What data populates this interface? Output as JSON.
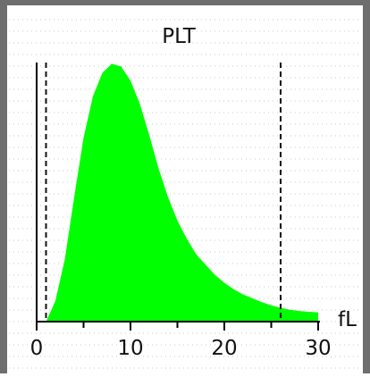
{
  "chart_data": {
    "type": "area",
    "title": "PLT",
    "xlabel": "fL",
    "ylabel": "",
    "xlim": [
      0,
      30
    ],
    "ylim": [
      0,
      1.0
    ],
    "x_ticks": [
      0,
      10,
      20,
      30
    ],
    "x_tick_labels": [
      "0",
      "10",
      "20",
      "30"
    ],
    "grid": true,
    "legend": "none",
    "discriminators": [
      1,
      26
    ],
    "series": [
      {
        "x": [
          1,
          2,
          3,
          4,
          5,
          6,
          7,
          8,
          9,
          10,
          11,
          12,
          13,
          14,
          15,
          16,
          17,
          18,
          19,
          20,
          21,
          22,
          23,
          24,
          25,
          26,
          27,
          28,
          29,
          30
        ],
        "values": [
          0.0,
          0.08,
          0.24,
          0.48,
          0.71,
          0.87,
          0.96,
          0.995,
          0.985,
          0.93,
          0.84,
          0.72,
          0.59,
          0.48,
          0.39,
          0.32,
          0.26,
          0.22,
          0.18,
          0.15,
          0.125,
          0.105,
          0.09,
          0.075,
          0.063,
          0.053,
          0.046,
          0.041,
          0.038,
          0.036
        ]
      }
    ],
    "colors": {
      "fill": "#00ff00",
      "axis": "#000000",
      "grid": "#c8c8c8",
      "frame": "#6e6e6e"
    }
  }
}
